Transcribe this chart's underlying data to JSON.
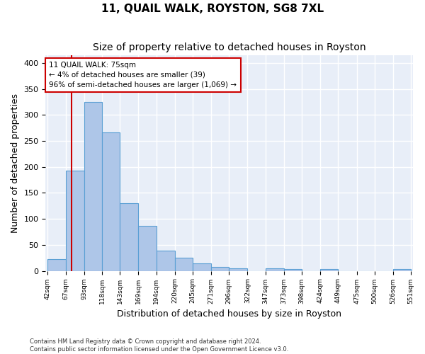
{
  "title": "11, QUAIL WALK, ROYSTON, SG8 7XL",
  "subtitle": "Size of property relative to detached houses in Royston",
  "xlabel": "Distribution of detached houses by size in Royston",
  "ylabel": "Number of detached properties",
  "bar_edges": [
    42,
    67,
    93,
    118,
    143,
    169,
    194,
    220,
    245,
    271,
    296,
    322,
    347,
    373,
    398,
    424,
    449,
    475,
    500,
    526,
    551
  ],
  "bar_heights": [
    22,
    193,
    325,
    267,
    130,
    86,
    39,
    25,
    14,
    8,
    5,
    0,
    5,
    3,
    0,
    4,
    0,
    0,
    0,
    3
  ],
  "bar_color": "#aec6e8",
  "bar_edge_color": "#5a9fd4",
  "property_line_x": 75,
  "property_line_color": "#cc0000",
  "annotation_text": "11 QUAIL WALK: 75sqm\n← 4% of detached houses are smaller (39)\n96% of semi-detached houses are larger (1,069) →",
  "annotation_box_color": "#cc0000",
  "ylim": [
    0,
    415
  ],
  "yticks": [
    0,
    50,
    100,
    150,
    200,
    250,
    300,
    350,
    400
  ],
  "background_color": "#e8eef8",
  "grid_color": "#ffffff",
  "footer_line1": "Contains HM Land Registry data © Crown copyright and database right 2024.",
  "footer_line2": "Contains public sector information licensed under the Open Government Licence v3.0.",
  "title_fontsize": 11,
  "subtitle_fontsize": 10,
  "xlabel_fontsize": 9,
  "ylabel_fontsize": 9
}
